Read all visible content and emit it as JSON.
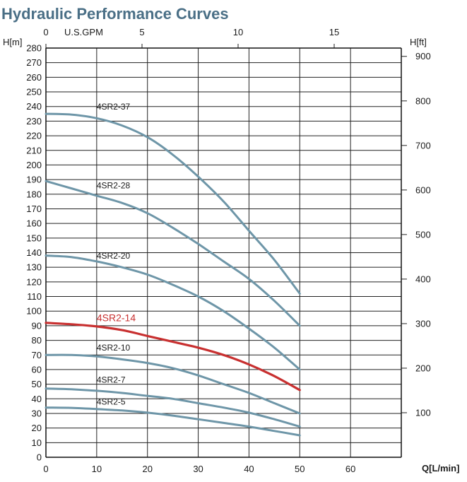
{
  "chart_data": {
    "type": "line",
    "title": "Hydraulic Performance Curves",
    "title_color": "#4a6f86",
    "xlabel": "Q[L/min]",
    "ylabel_left": "H[m]",
    "ylabel_right": "H[ft]",
    "top_axis_label": "U.S.GPM",
    "xlim": [
      0,
      70
    ],
    "ylim": [
      0,
      280
    ],
    "x_ticks": [
      0,
      10,
      20,
      30,
      40,
      50,
      60
    ],
    "y_ticks": [
      0,
      10,
      20,
      30,
      40,
      50,
      60,
      70,
      80,
      90,
      100,
      110,
      120,
      130,
      140,
      150,
      160,
      170,
      180,
      190,
      200,
      210,
      220,
      230,
      240,
      250,
      260,
      270,
      280
    ],
    "top_ticks": [
      0,
      5,
      10,
      15
    ],
    "top_tick_labels": [
      "0",
      "5",
      "10",
      "15"
    ],
    "right_ticks": [
      100,
      200,
      300,
      400,
      500,
      600,
      700,
      800,
      900
    ],
    "right_tick_labels": [
      "100",
      "200",
      "300",
      "400",
      "500",
      "600",
      "700",
      "800",
      "900"
    ],
    "grid": true,
    "series": [
      {
        "name": "4SR2-37",
        "color": "#6e96a8",
        "label_at": [
          10,
          238
        ],
        "highlight": false,
        "x": [
          0,
          5,
          10,
          15,
          20,
          25,
          30,
          35,
          40,
          45,
          50
        ],
        "y": [
          235,
          234.5,
          232,
          227,
          219,
          207,
          192,
          175,
          155,
          135,
          112
        ]
      },
      {
        "name": "4SR2-28",
        "color": "#6e96a8",
        "label_at": [
          10,
          184
        ],
        "highlight": false,
        "x": [
          0,
          5,
          10,
          15,
          20,
          25,
          30,
          35,
          40,
          45,
          50
        ],
        "y": [
          189,
          184,
          179,
          174,
          167,
          157,
          146,
          134,
          122,
          107,
          90
        ]
      },
      {
        "name": "4SR2-20",
        "color": "#6e96a8",
        "label_at": [
          10,
          136
        ],
        "highlight": false,
        "x": [
          0,
          5,
          10,
          15,
          20,
          25,
          30,
          35,
          40,
          45,
          50
        ],
        "y": [
          138,
          137,
          134,
          130,
          125,
          118,
          110,
          100,
          88,
          75,
          60
        ]
      },
      {
        "name": "4SR2-14",
        "color": "#c83030",
        "label_at": [
          10,
          93
        ],
        "highlight": true,
        "x": [
          0,
          5,
          10,
          15,
          20,
          25,
          30,
          35,
          40,
          45,
          50
        ],
        "y": [
          92,
          91,
          89.5,
          87,
          83,
          79,
          75,
          70,
          63.5,
          55.5,
          46
        ]
      },
      {
        "name": "4SR2-10",
        "color": "#6e96a8",
        "label_at": [
          10,
          73
        ],
        "highlight": false,
        "x": [
          0,
          5,
          10,
          15,
          20,
          25,
          30,
          35,
          40,
          45,
          50
        ],
        "y": [
          70,
          70,
          69,
          67,
          64.5,
          61,
          56,
          50,
          44,
          37,
          30
        ]
      },
      {
        "name": "4SR2-7",
        "color": "#6e96a8",
        "label_at": [
          10,
          51
        ],
        "highlight": false,
        "x": [
          0,
          5,
          10,
          15,
          20,
          25,
          30,
          35,
          40,
          45,
          50
        ],
        "y": [
          47,
          46.5,
          45.5,
          44,
          42,
          40,
          37,
          34,
          30.5,
          26,
          21
        ]
      },
      {
        "name": "4SR2-5",
        "color": "#6e96a8",
        "label_at": [
          10,
          36
        ],
        "highlight": false,
        "x": [
          0,
          5,
          10,
          15,
          20,
          25,
          30,
          35,
          40,
          45,
          50
        ],
        "y": [
          34,
          33.8,
          33,
          32,
          30.5,
          28.5,
          26,
          23.5,
          21,
          18,
          15
        ]
      }
    ]
  }
}
